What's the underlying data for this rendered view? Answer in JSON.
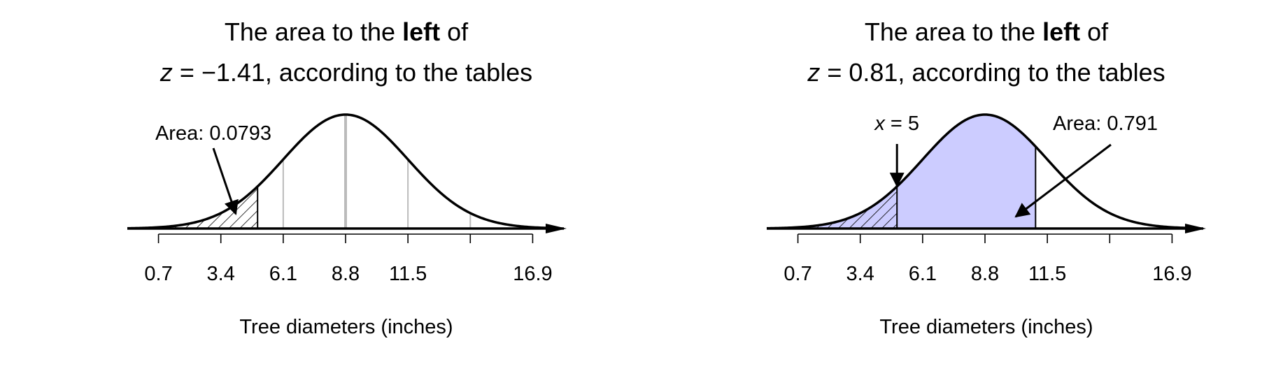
{
  "colors": {
    "fill": "#ccccff",
    "curve": "#000000",
    "sd_lines": "#bbbbbb"
  },
  "chart_data": [
    {
      "type": "area",
      "distribution": "normal",
      "mean": 8.8,
      "sd": 2.7,
      "title_line1_pre": "The area to the ",
      "title_line1_bold": "left",
      "title_line1_post": " of",
      "title_line2_var": "z",
      "title_line2_rest": " = −1.41, according to the tables",
      "xlabel": "Tree diameters (inches)",
      "ticks": [
        0.7,
        3.4,
        6.1,
        8.8,
        11.5,
        14.2,
        16.9
      ],
      "tick_labels": [
        "0.7",
        "3.4",
        "6.1",
        "8.8",
        "11.5",
        "",
        "16.9"
      ],
      "xlim": [
        -0.65,
        18.25
      ],
      "sd_lines_at": [
        6.1,
        8.8,
        11.5,
        14.2
      ],
      "shaded_left_of": 4.99,
      "shaded_style": "hatched",
      "annotation": {
        "text": "Area: 0.0793",
        "points_to_x": 3.9
      }
    },
    {
      "type": "area",
      "distribution": "normal",
      "mean": 8.8,
      "sd": 2.7,
      "title_line1_pre": "The area to the ",
      "title_line1_bold": "left",
      "title_line1_post": " of",
      "title_line2_var": "z",
      "title_line2_rest": " = 0.81, according to the tables",
      "xlabel": "Tree diameters (inches)",
      "ticks": [
        0.7,
        3.4,
        6.1,
        8.8,
        11.5,
        14.2,
        16.9
      ],
      "tick_labels": [
        "0.7",
        "3.4",
        "6.1",
        "8.8",
        "11.5",
        "",
        "16.9"
      ],
      "xlim": [
        -0.65,
        18.25
      ],
      "shaded_left_of": 10.99,
      "hatched_left_of": 4.99,
      "marker": {
        "var": "x",
        "rest": " = 5",
        "x": 4.99
      },
      "annotation": {
        "text": "Area: 0.791",
        "points_to_x": 10.0
      }
    }
  ]
}
